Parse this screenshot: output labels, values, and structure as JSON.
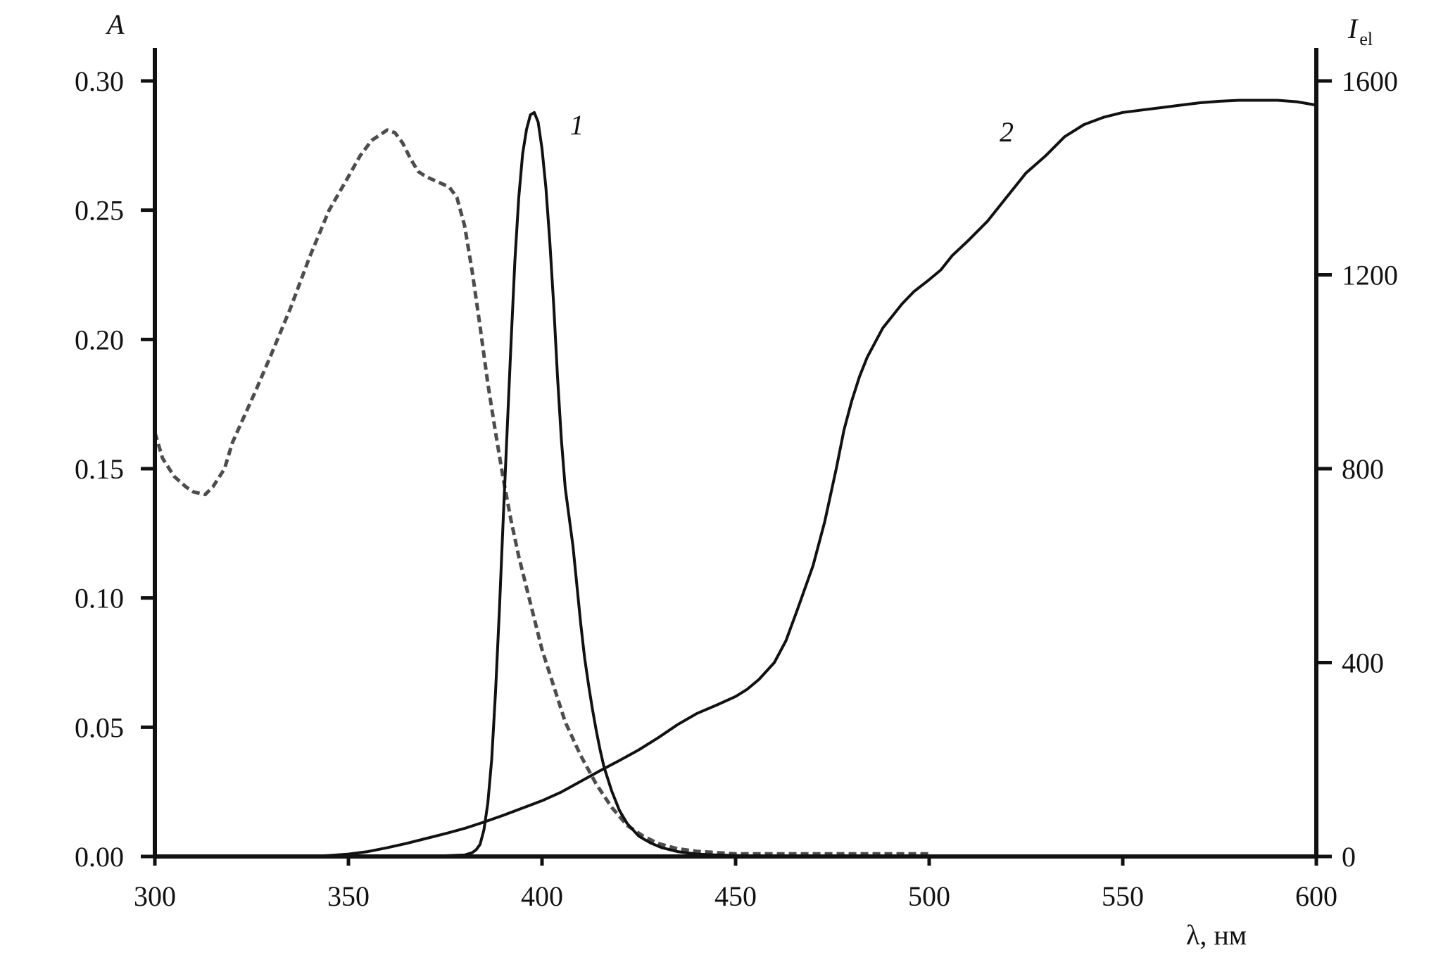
{
  "chart_data": {
    "type": "line",
    "xlabel": "λ, нм",
    "ylabel_left": "A",
    "ylabel_right": {
      "base": "I",
      "sub": "el"
    },
    "xlim": [
      300,
      600
    ],
    "ylim_left": [
      0,
      0.3
    ],
    "ylim_right": [
      0,
      1600
    ],
    "x_ticks": [
      "300",
      "350",
      "400",
      "450",
      "500",
      "550",
      "600"
    ],
    "y_left_ticks": [
      "0.00",
      "0.05",
      "0.10",
      "0.15",
      "0.20",
      "0.25",
      "0.30"
    ],
    "y_right_ticks": [
      "0",
      "400",
      "800",
      "1200",
      "1600"
    ],
    "grid": false,
    "series": [
      {
        "label": "",
        "axis": "left",
        "style": "dashed",
        "color": "#4d4d4d",
        "x": [
          300,
          302,
          305,
          308,
          310,
          313,
          315,
          318,
          320,
          323,
          326,
          330,
          335,
          340,
          345,
          350,
          353,
          356,
          358,
          360,
          362,
          364,
          366,
          368,
          370,
          373,
          376,
          378,
          380,
          382,
          384,
          386,
          388,
          390,
          392,
          394,
          396,
          398,
          400,
          403,
          406,
          410,
          414,
          418,
          422,
          426,
          430,
          435,
          440,
          445,
          450,
          460,
          470,
          480,
          490,
          500
        ],
        "y": [
          0.164,
          0.154,
          0.147,
          0.143,
          0.141,
          0.14,
          0.143,
          0.15,
          0.16,
          0.17,
          0.18,
          0.194,
          0.212,
          0.232,
          0.25,
          0.263,
          0.271,
          0.277,
          0.279,
          0.281,
          0.28,
          0.276,
          0.27,
          0.265,
          0.263,
          0.261,
          0.259,
          0.255,
          0.244,
          0.226,
          0.205,
          0.183,
          0.164,
          0.146,
          0.13,
          0.116,
          0.104,
          0.092,
          0.08,
          0.066,
          0.052,
          0.039,
          0.028,
          0.019,
          0.012,
          0.008,
          0.005,
          0.003,
          0.002,
          0.0015,
          0.001,
          0.001,
          0.001,
          0.001,
          0.001,
          0.001
        ]
      },
      {
        "label": "1",
        "axis": "right",
        "style": "solid",
        "color": "#111111",
        "x": [
          370,
          380,
          382,
          383,
          384,
          385,
          386,
          387,
          388,
          389,
          390,
          391,
          392,
          393,
          394,
          395,
          396,
          397,
          398,
          399,
          400,
          401,
          402,
          403,
          404,
          405,
          406,
          407,
          408,
          409,
          410,
          411,
          412,
          413,
          414,
          415,
          416,
          418,
          420,
          422,
          425,
          428,
          431,
          435,
          440,
          445,
          450,
          455,
          460
        ],
        "y": [
          0,
          3,
          8,
          14,
          25,
          55,
          110,
          200,
          340,
          510,
          700,
          880,
          1060,
          1230,
          1360,
          1450,
          1500,
          1530,
          1535,
          1515,
          1460,
          1380,
          1270,
          1140,
          990,
          860,
          760,
          700,
          640,
          560,
          480,
          410,
          355,
          305,
          260,
          220,
          185,
          135,
          95,
          68,
          42,
          28,
          18,
          10,
          5,
          3,
          2,
          1,
          0
        ]
      },
      {
        "label": "2",
        "axis": "right",
        "style": "solid",
        "color": "#111111",
        "x": [
          336,
          340,
          345,
          350,
          355,
          360,
          365,
          370,
          375,
          380,
          385,
          390,
          395,
          400,
          405,
          410,
          415,
          420,
          425,
          430,
          435,
          440,
          445,
          450,
          453,
          456,
          460,
          463,
          466,
          470,
          473,
          476,
          478,
          480,
          482,
          484,
          486,
          488,
          490,
          493,
          496,
          500,
          503,
          506,
          510,
          515,
          520,
          525,
          530,
          535,
          540,
          545,
          550,
          555,
          560,
          565,
          570,
          575,
          580,
          585,
          590,
          595,
          600
        ],
        "y": [
          0,
          0,
          2,
          5,
          10,
          18,
          27,
          37,
          47,
          58,
          71,
          85,
          100,
          115,
          133,
          155,
          177,
          198,
          220,
          245,
          272,
          295,
          312,
          330,
          345,
          365,
          400,
          445,
          510,
          600,
          690,
          800,
          880,
          940,
          990,
          1030,
          1060,
          1090,
          1110,
          1140,
          1165,
          1190,
          1210,
          1240,
          1270,
          1310,
          1360,
          1410,
          1445,
          1485,
          1510,
          1525,
          1535,
          1540,
          1545,
          1550,
          1555,
          1558,
          1560,
          1560,
          1560,
          1557,
          1550
        ]
      }
    ],
    "annotations": [
      {
        "text": "1",
        "x": 409,
        "y_right": 1490
      },
      {
        "text": "2",
        "x": 520,
        "y_right": 1475
      }
    ]
  }
}
